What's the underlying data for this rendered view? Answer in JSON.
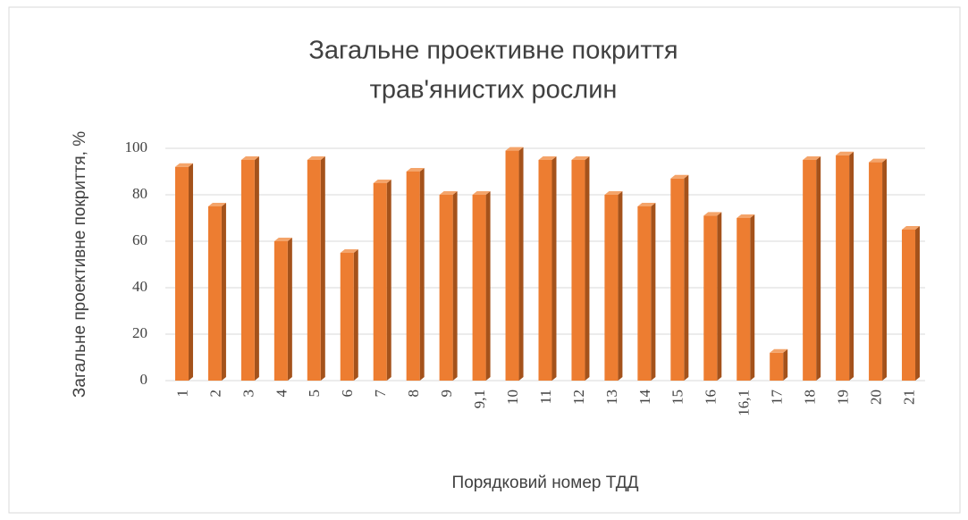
{
  "chart_data": {
    "type": "bar",
    "title": [
      "Загальне проективне покриття",
      "трав'янистих рослин"
    ],
    "x_label": "Порядковий номер ТДД",
    "y_label": "Загальне проективне покриття, %",
    "categories": [
      "1",
      "2",
      "3",
      "4",
      "5",
      "6",
      "7",
      "8",
      "9",
      "9,1",
      "10",
      "11",
      "12",
      "13",
      "14",
      "15",
      "16",
      "16,1",
      "17",
      "18",
      "19",
      "20",
      "21"
    ],
    "values": [
      92,
      75,
      95,
      60,
      95,
      55,
      85,
      90,
      80,
      80,
      99,
      95,
      95,
      80,
      75,
      87,
      71,
      70,
      12,
      95,
      97,
      94,
      65
    ],
    "color": "#ed7d31",
    "ylim": [
      0,
      100
    ],
    "yticks": [
      0,
      20,
      40,
      60,
      80,
      100
    ],
    "grid": true
  }
}
